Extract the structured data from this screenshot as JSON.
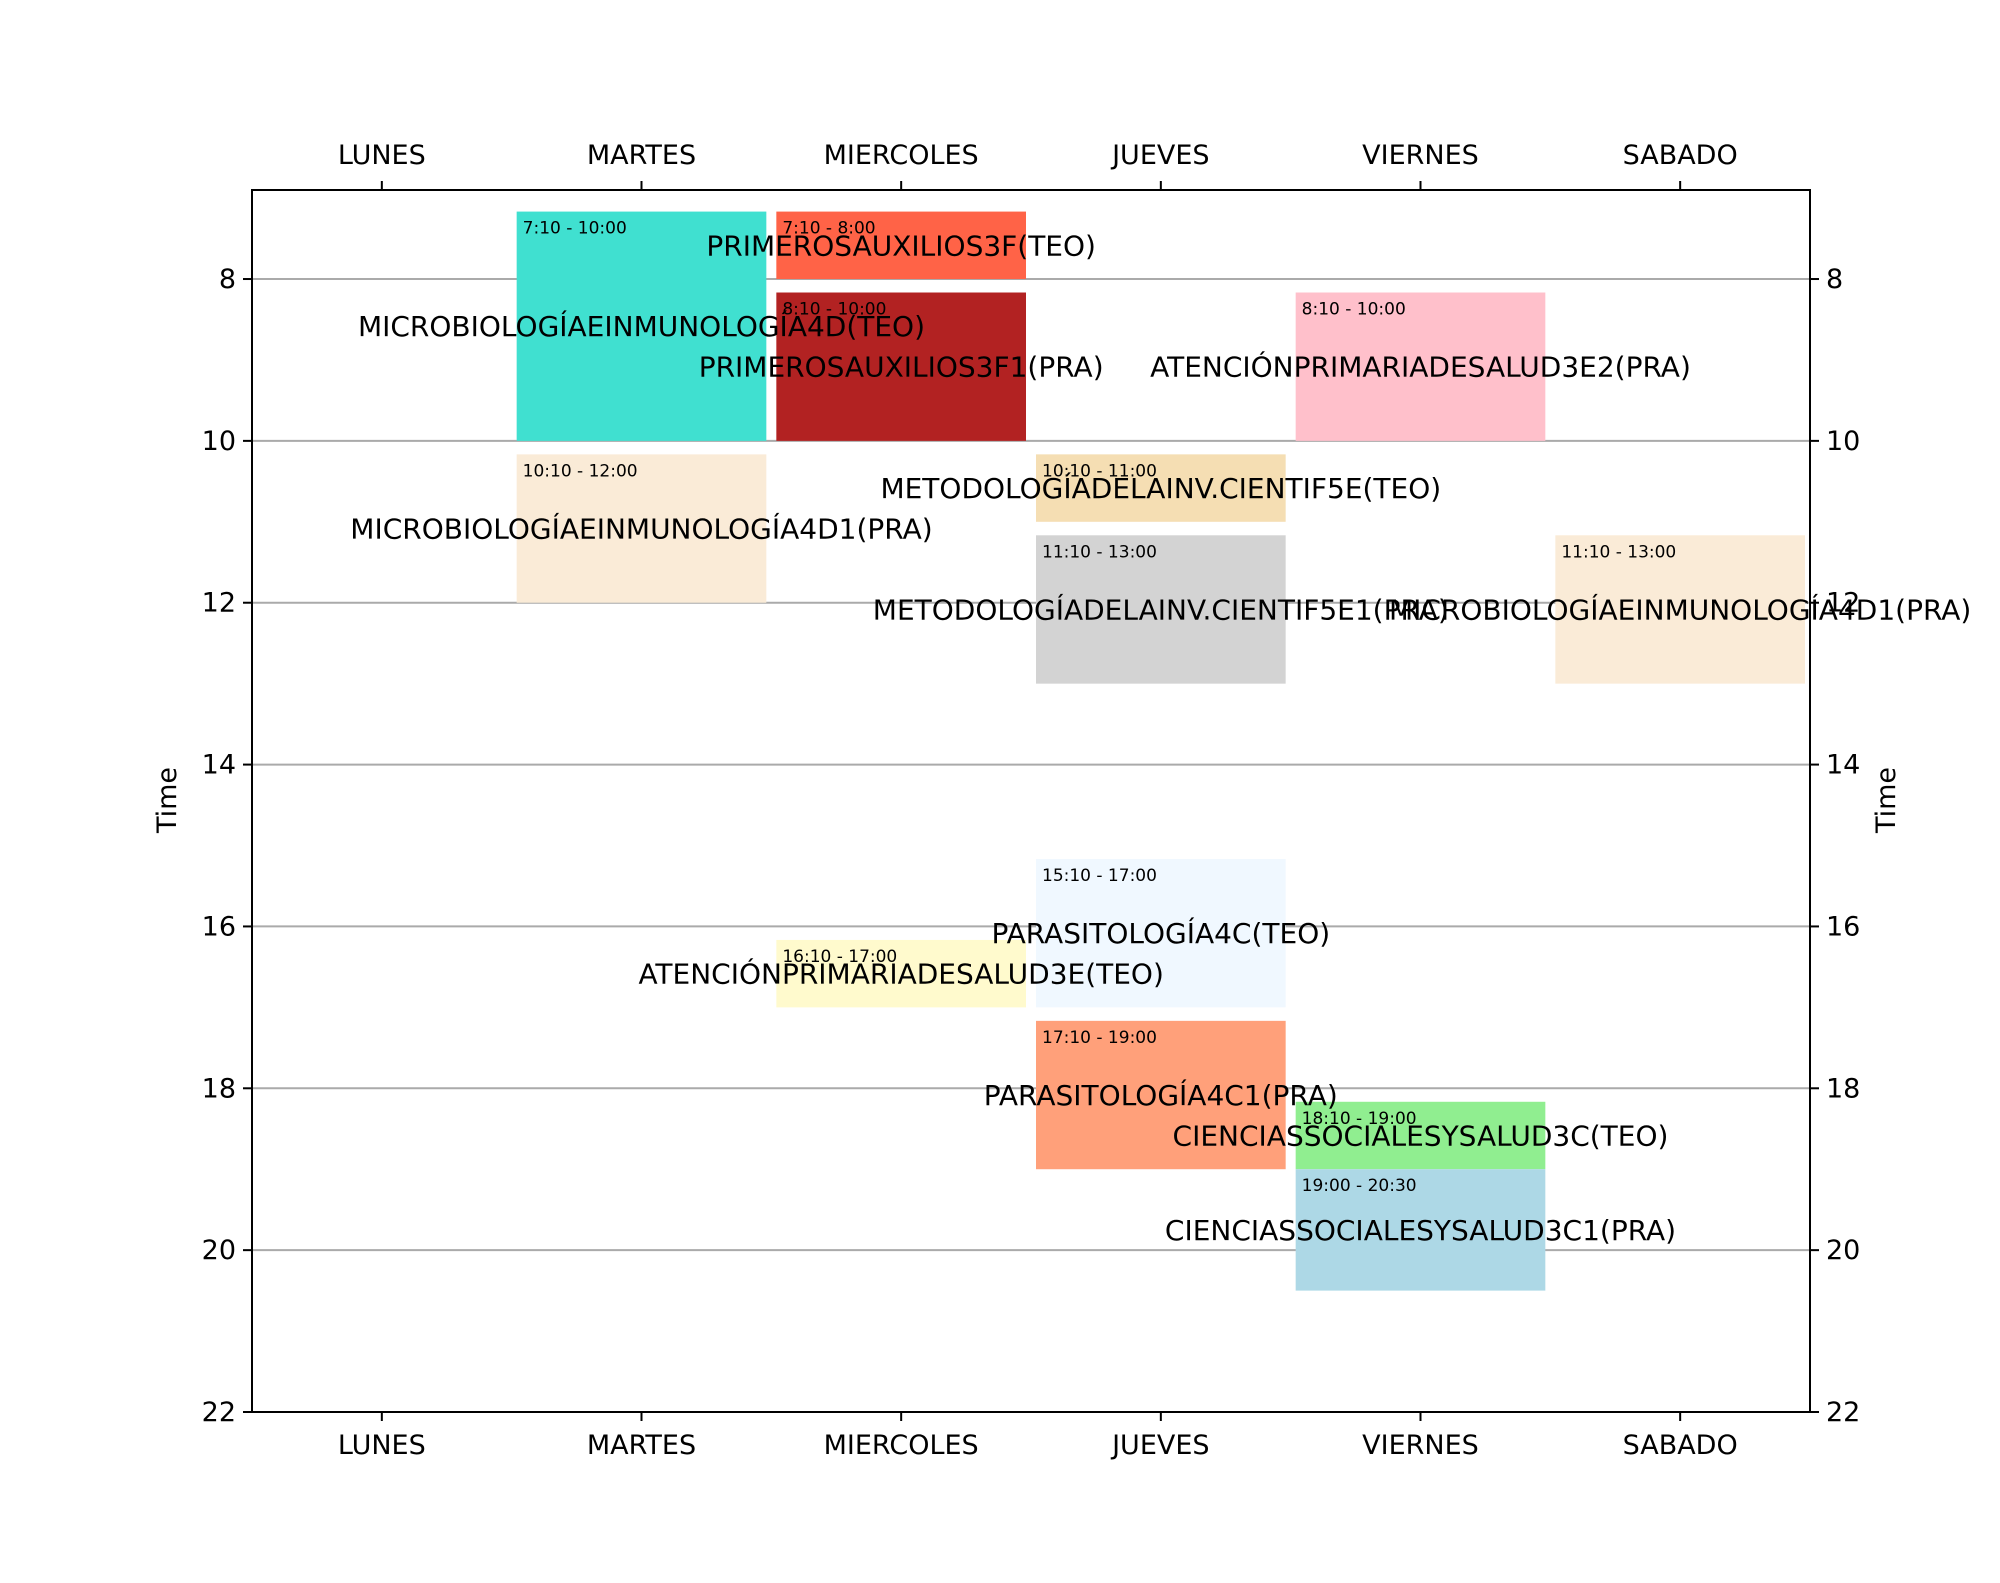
{
  "chart_data": {
    "type": "timetable",
    "days": [
      "LUNES",
      "MARTES",
      "MIERCOLES",
      "JUEVES",
      "VIERNES",
      "SABADO"
    ],
    "ylabel": "Time",
    "ylim": [
      22,
      6.9
    ],
    "y_ticks": [
      "8",
      "10",
      "12",
      "14",
      "16",
      "18",
      "20",
      "22"
    ],
    "y_tick_values": [
      8,
      10,
      12,
      14,
      16,
      18,
      20,
      22
    ],
    "grid": "horizontal",
    "events": [
      {
        "day": "MARTES",
        "start": 7.1667,
        "end": 10.0,
        "time_label": "7:10 - 10:00",
        "label": "MICROBIOLOGÍAEINMUNOLOGÍA4D(TEO)",
        "color": "#40e0d0"
      },
      {
        "day": "MARTES",
        "start": 10.1667,
        "end": 12.0,
        "time_label": "10:10 - 12:00",
        "label": "MICROBIOLOGÍAEINMUNOLOGÍA4D1(PRA)",
        "color": "#faebd7"
      },
      {
        "day": "MIERCOLES",
        "start": 7.1667,
        "end": 8.0,
        "time_label": "7:10 - 8:00",
        "label": "PRIMEROSAUXILIOS3F(TEO)",
        "color": "#ff6347"
      },
      {
        "day": "MIERCOLES",
        "start": 8.1667,
        "end": 10.0,
        "time_label": "8:10 - 10:00",
        "label": "PRIMEROSAUXILIOS3F1(PRA)",
        "color": "#b22222"
      },
      {
        "day": "MIERCOLES",
        "start": 16.1667,
        "end": 17.0,
        "time_label": "16:10 - 17:00",
        "label": "ATENCIÓNPRIMARIADESALUD3E(TEO)",
        "color": "#fffacd"
      },
      {
        "day": "JUEVES",
        "start": 10.1667,
        "end": 11.0,
        "time_label": "10:10 - 11:00",
        "label": "METODOLOGÍADELAINV.CIENTIF5E(TEO)",
        "color": "#f5deb3"
      },
      {
        "day": "JUEVES",
        "start": 11.1667,
        "end": 13.0,
        "time_label": "11:10 - 13:00",
        "label": "METODOLOGÍADELAINV.CIENTIF5E1(PRA)",
        "color": "#d3d3d3"
      },
      {
        "day": "JUEVES",
        "start": 15.1667,
        "end": 17.0,
        "time_label": "15:10 - 17:00",
        "label": "PARASITOLOGÍA4C(TEO)",
        "color": "#f0f8ff"
      },
      {
        "day": "JUEVES",
        "start": 17.1667,
        "end": 19.0,
        "time_label": "17:10 - 19:00",
        "label": "PARASITOLOGÍA4C1(PRA)",
        "color": "#ffa07a"
      },
      {
        "day": "VIERNES",
        "start": 8.1667,
        "end": 10.0,
        "time_label": "8:10 - 10:00",
        "label": "ATENCIÓNPRIMARIADESALUD3E2(PRA)",
        "color": "#ffc0cb"
      },
      {
        "day": "VIERNES",
        "start": 18.1667,
        "end": 19.0,
        "time_label": "18:10 - 19:00",
        "label": "CIENCIASSOCIALESYSALUD3C(TEO)",
        "color": "#90ee90"
      },
      {
        "day": "VIERNES",
        "start": 19.0,
        "end": 20.5,
        "time_label": "19:00 - 20:30",
        "label": "CIENCIASSOCIALESYSALUD3C1(PRA)",
        "color": "#add8e6"
      },
      {
        "day": "SABADO",
        "start": 11.1667,
        "end": 13.0,
        "time_label": "11:10 - 13:00",
        "label": "MICROBIOLOGÍAEINMUNOLOGÍA4D1(PRA)",
        "color": "#faebd7"
      }
    ]
  }
}
